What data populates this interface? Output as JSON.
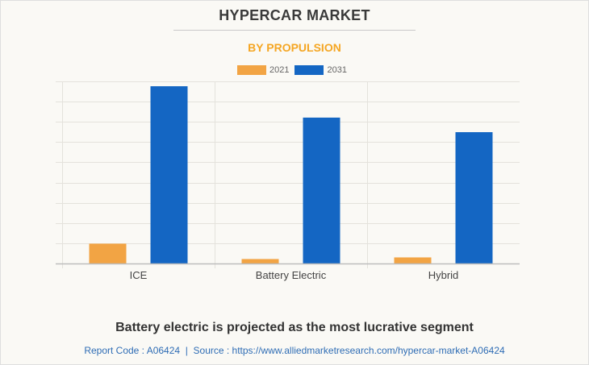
{
  "title": "HYPERCAR MARKET",
  "subtitle": "BY PROPULSION",
  "legend": [
    {
      "label": "2021",
      "color": "#f2a444"
    },
    {
      "label": "2031",
      "color": "#1466c3"
    }
  ],
  "chart_data": {
    "type": "bar",
    "title": "HYPERCAR MARKET",
    "subtitle": "BY PROPULSION",
    "categories": [
      "ICE",
      "Battery Electric",
      "Hybrid"
    ],
    "series": [
      {
        "name": "2021",
        "color": "#f2a444",
        "values": [
          0.98,
          0.22,
          0.3
        ]
      },
      {
        "name": "2031",
        "color": "#1466c3",
        "values": [
          8.76,
          7.21,
          6.49
        ]
      }
    ],
    "xlabel": "",
    "ylabel": "",
    "ylim": [
      0,
      9
    ],
    "y_ticks_labeled": false,
    "grid": true,
    "legend_position": "top-center",
    "note": "Values in relative gridline units; y-axis has no tick labels"
  },
  "footer": {
    "headline": "Battery electric is projected as the most lucrative segment",
    "source": "Report Code : A06424  |  Source : https://www.alliedmarketresearch.com/hypercar-market-A06424"
  }
}
